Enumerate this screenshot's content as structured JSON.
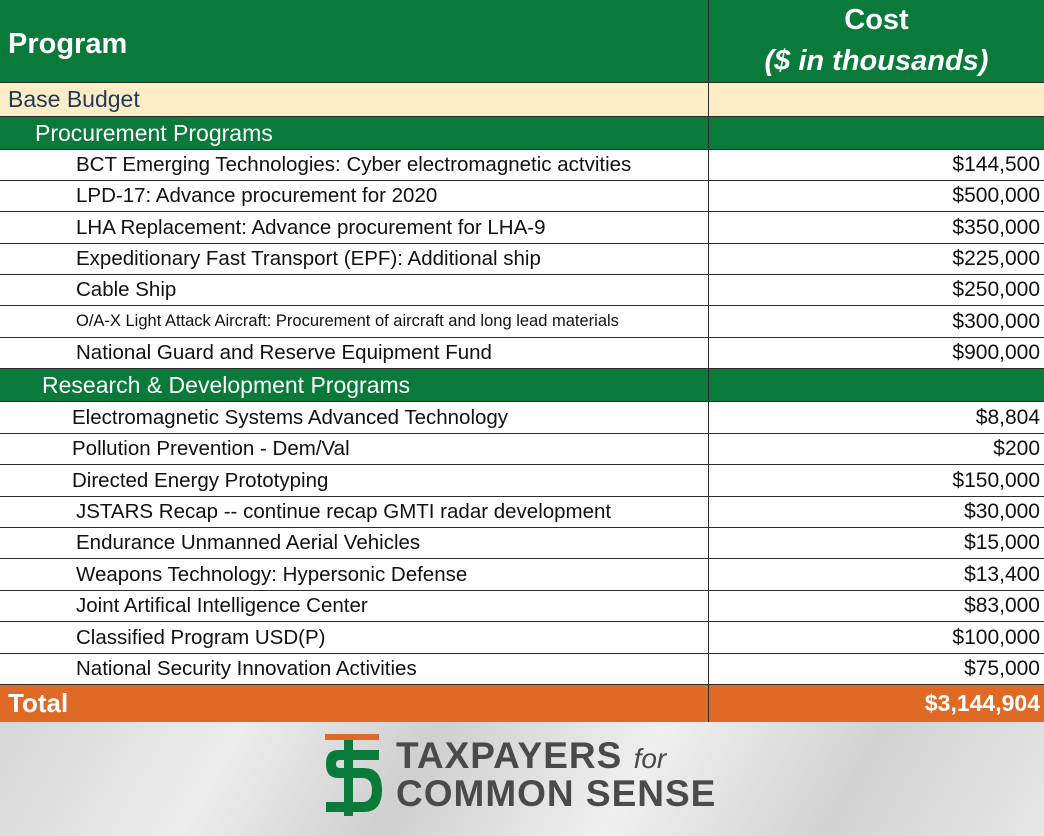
{
  "header": {
    "program_label": "Program",
    "cost_label": "Cost",
    "cost_units": "($ in thousands)"
  },
  "base_budget": {
    "label": "Base Budget"
  },
  "procurement": {
    "label": "Procurement Programs",
    "items": [
      {
        "name": "BCT Emerging Technologies: Cyber electromagnetic actvities",
        "cost": "$144,500"
      },
      {
        "name": "LPD-17: Advance procurement for 2020",
        "cost": "$500,000"
      },
      {
        "name": "LHA Replacement: Advance procurement for LHA-9",
        "cost": "$350,000"
      },
      {
        "name": "Expeditionary Fast Transport (EPF): Additional ship",
        "cost": "$225,000"
      },
      {
        "name": "Cable Ship",
        "cost": "$250,000"
      },
      {
        "name": "O/A-X Light Attack Aircraft: Procurement of aircraft and long lead materials",
        "cost": "$300,000"
      },
      {
        "name": "National Guard and Reserve Equipment Fund",
        "cost": "$900,000"
      }
    ]
  },
  "research": {
    "label": "Research & Development Programs",
    "items": [
      {
        "name": "Electromagnetic Systems Advanced Technology",
        "cost": "$8,804"
      },
      {
        "name": "Pollution Prevention - Dem/Val",
        "cost": "$200"
      },
      {
        "name": "Directed Energy Prototyping",
        "cost": "$150,000"
      },
      {
        "name": "JSTARS Recap -- continue recap GMTI radar development",
        "cost": "$30,000"
      },
      {
        "name": "Endurance Unmanned Aerial Vehicles",
        "cost": "$15,000"
      },
      {
        "name": "Weapons Technology: Hypersonic Defense",
        "cost": "$13,400"
      },
      {
        "name": "Joint Artifical Intelligence Center",
        "cost": "$83,000"
      },
      {
        "name": "Classified Program USD(P)",
        "cost": "$100,000"
      },
      {
        "name": "National Security Innovation Activities",
        "cost": "$75,000"
      }
    ]
  },
  "total": {
    "label": "Total",
    "cost": "$3,144,904"
  },
  "footer": {
    "logo_icon": "tcs-dollar-logo-icon",
    "brand_line1": "TAXPAYERS",
    "brand_for": "for",
    "brand_line2": "COMMON SENSE",
    "colors": {
      "green": "#0a7a3a",
      "orange": "#df6a26",
      "cream": "#fdedc6"
    }
  }
}
